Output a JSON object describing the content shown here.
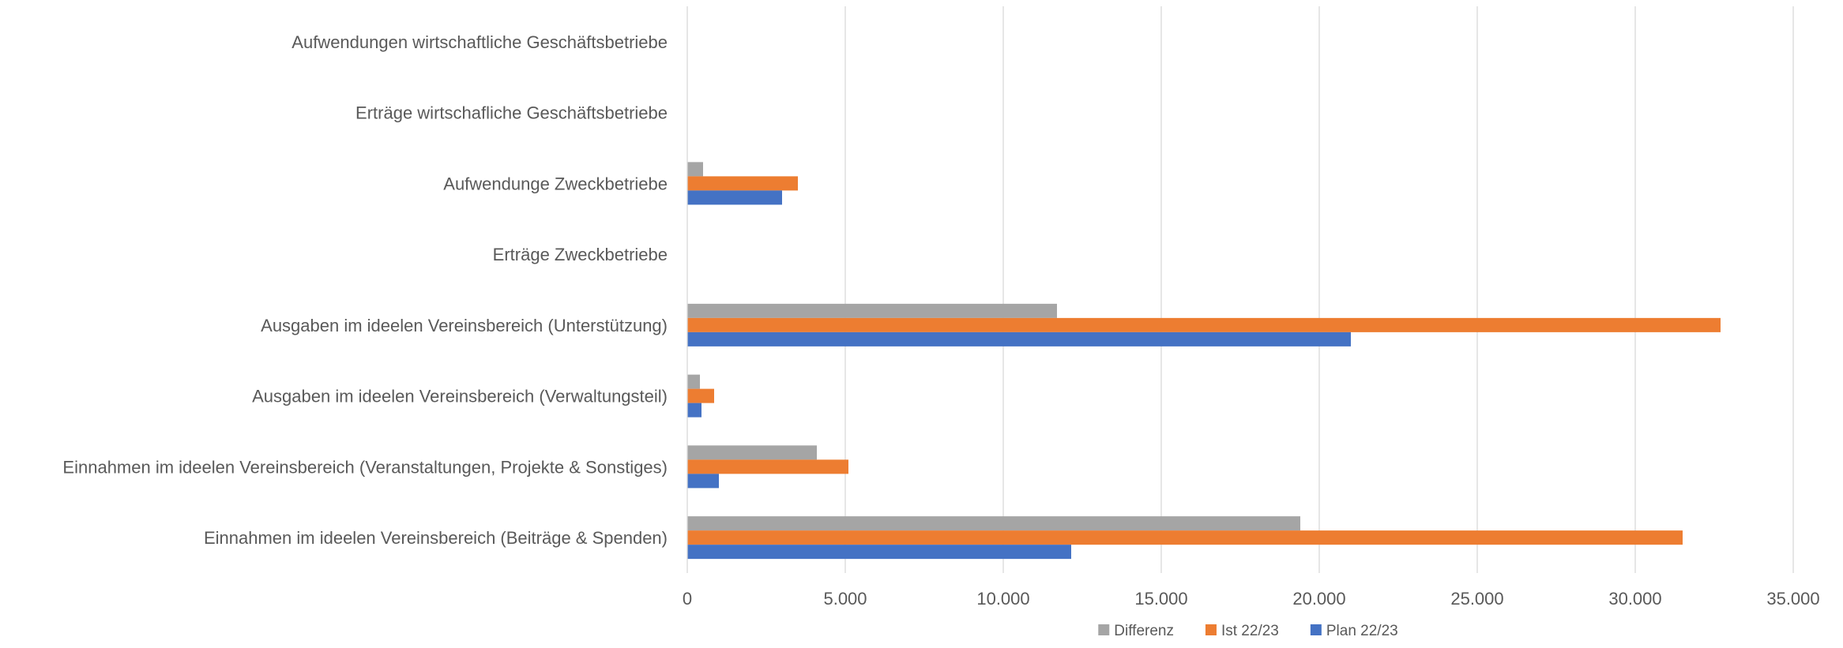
{
  "chart_data": {
    "type": "bar",
    "orientation": "horizontal",
    "categories": [
      "Aufwendungen wirtschaftliche Geschäftsbetriebe",
      "Erträge wirtschafliche Geschäftsbetriebe",
      "Aufwendunge Zweckbetriebe",
      "Erträge Zweckbetriebe",
      "Ausgaben im ideelen Vereinsbereich (Unterstützung)",
      "Ausgaben im ideelen Vereinsbereich (Verwaltungsteil)",
      "Einnahmen im ideelen Vereinsbereich (Veranstaltungen, Projekte & Sonstiges)",
      "Einnahmen im ideelen Vereinsbereich (Beiträge & Spenden)"
    ],
    "series": [
      {
        "name": "Differenz",
        "color": "#a5a5a5",
        "values": [
          0,
          0,
          500,
          0,
          11700,
          400,
          4100,
          19400
        ]
      },
      {
        "name": "Ist 22/23",
        "color": "#ed7d31",
        "values": [
          0,
          0,
          3500,
          0,
          32700,
          850,
          5100,
          31500
        ]
      },
      {
        "name": "Plan 22/23",
        "color": "#4472c4",
        "values": [
          0,
          0,
          3000,
          0,
          21000,
          450,
          1000,
          12150
        ]
      }
    ],
    "xlim": [
      0,
      35000
    ],
    "xticks": [
      0,
      5000,
      10000,
      15000,
      20000,
      25000,
      30000,
      35000
    ],
    "tick_labels": [
      "0",
      "5.000",
      "10.000",
      "15.000",
      "20.000",
      "25.000",
      "30.000",
      "35.000"
    ],
    "legend_order": [
      "Differenz",
      "Ist 22/23",
      "Plan 22/23"
    ],
    "legend_position": "bottom",
    "grid": "vertical",
    "title": "",
    "xlabel": "",
    "ylabel": ""
  }
}
